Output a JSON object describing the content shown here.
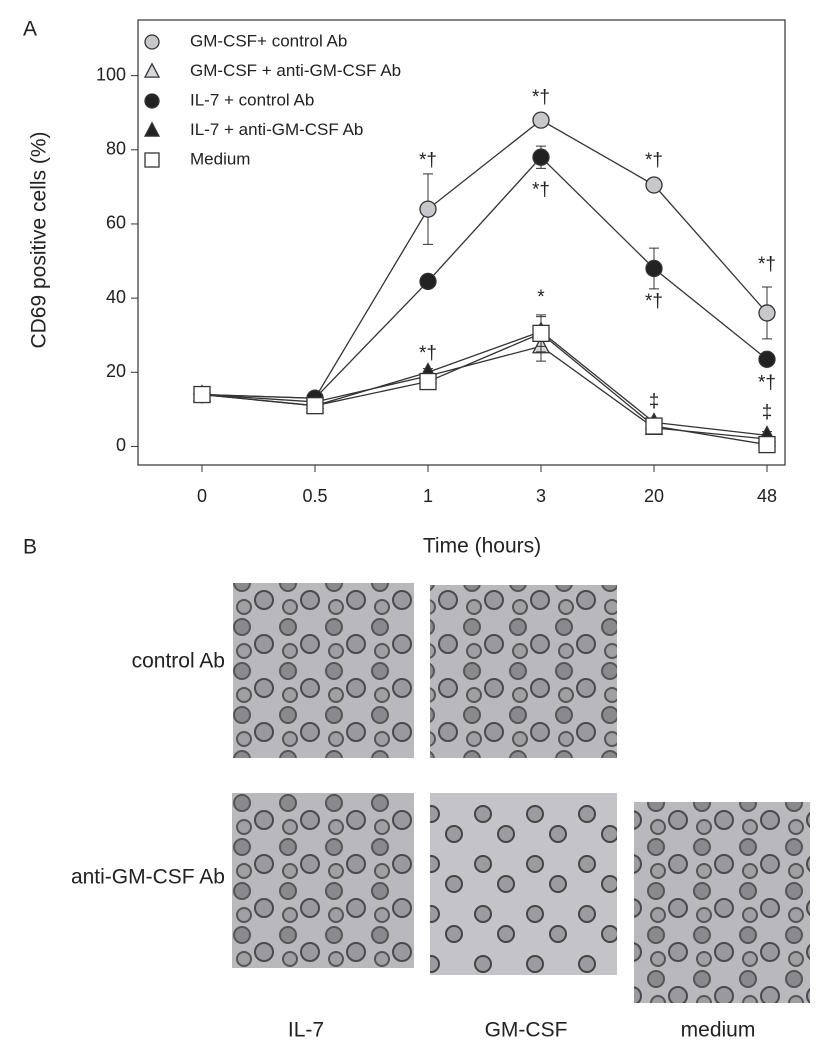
{
  "panel_labels": [
    "A",
    "B"
  ],
  "chart_data": {
    "type": "line",
    "ylabel": "CD69 positive cells (%)",
    "xlabel": "Time (hours)",
    "categories": [
      "0",
      "0.5",
      "1",
      "3",
      "20",
      "48"
    ],
    "ylim": [
      -5,
      115
    ],
    "yticks": [
      0,
      20,
      40,
      60,
      80,
      100
    ],
    "line_color": "#333333",
    "legend": "upper left",
    "series": [
      {
        "name": "GM-CSF+ control Ab",
        "marker": "circle",
        "color": "#c8c8cc",
        "values": [
          14,
          13,
          64,
          88,
          70.5,
          36
        ],
        "errors": [
          1,
          1,
          9.5,
          1,
          1,
          7
        ]
      },
      {
        "name": "GM-CSF + anti-GM-CSF Ab",
        "marker": "triangle",
        "color": "#d8d8dc",
        "values": [
          14,
          12,
          19,
          27,
          5,
          2
        ],
        "errors": [
          1,
          1,
          1,
          4,
          1,
          1
        ]
      },
      {
        "name": "IL-7 + control Ab",
        "marker": "circle",
        "color": "#222222",
        "values": [
          14,
          13,
          44.5,
          78,
          48,
          23.5
        ],
        "errors": [
          1,
          1,
          1,
          3,
          5.5,
          1
        ]
      },
      {
        "name": "IL-7 + anti-GM-CSF Ab",
        "marker": "triangle",
        "color": "#222222",
        "values": [
          14,
          11,
          20,
          31,
          6.5,
          3
        ],
        "errors": [
          1,
          1,
          1,
          4,
          1,
          1
        ]
      },
      {
        "name": "Medium",
        "marker": "square",
        "color": "#ffffff",
        "values": [
          14,
          11,
          17.5,
          30.5,
          5.5,
          0.5
        ],
        "errors": [
          1,
          1,
          1,
          5,
          1,
          1
        ]
      }
    ],
    "annotations": [
      {
        "text": "*†",
        "x": "1",
        "y": 77
      },
      {
        "text": "*†",
        "x": "1",
        "y": 25
      },
      {
        "text": "*†",
        "x": "3",
        "y": 94
      },
      {
        "text": "*†",
        "x": "3",
        "y": 69
      },
      {
        "text": "*",
        "x": "3",
        "y": 40
      },
      {
        "text": "*†",
        "x": "20",
        "y": 77
      },
      {
        "text": "*†",
        "x": "20",
        "y": 39
      },
      {
        "text": "‡",
        "x": "20",
        "y": 12
      },
      {
        "text": "*†",
        "x": "48",
        "y": 49
      },
      {
        "text": "*†",
        "x": "48",
        "y": 17
      },
      {
        "text": "‡",
        "x": "48",
        "y": 9
      }
    ]
  },
  "panel_b": {
    "row_labels": [
      "control Ab",
      "anti-GM-CSF Ab"
    ],
    "column_labels": [
      "IL-7",
      "GM-CSF",
      "medium"
    ]
  }
}
